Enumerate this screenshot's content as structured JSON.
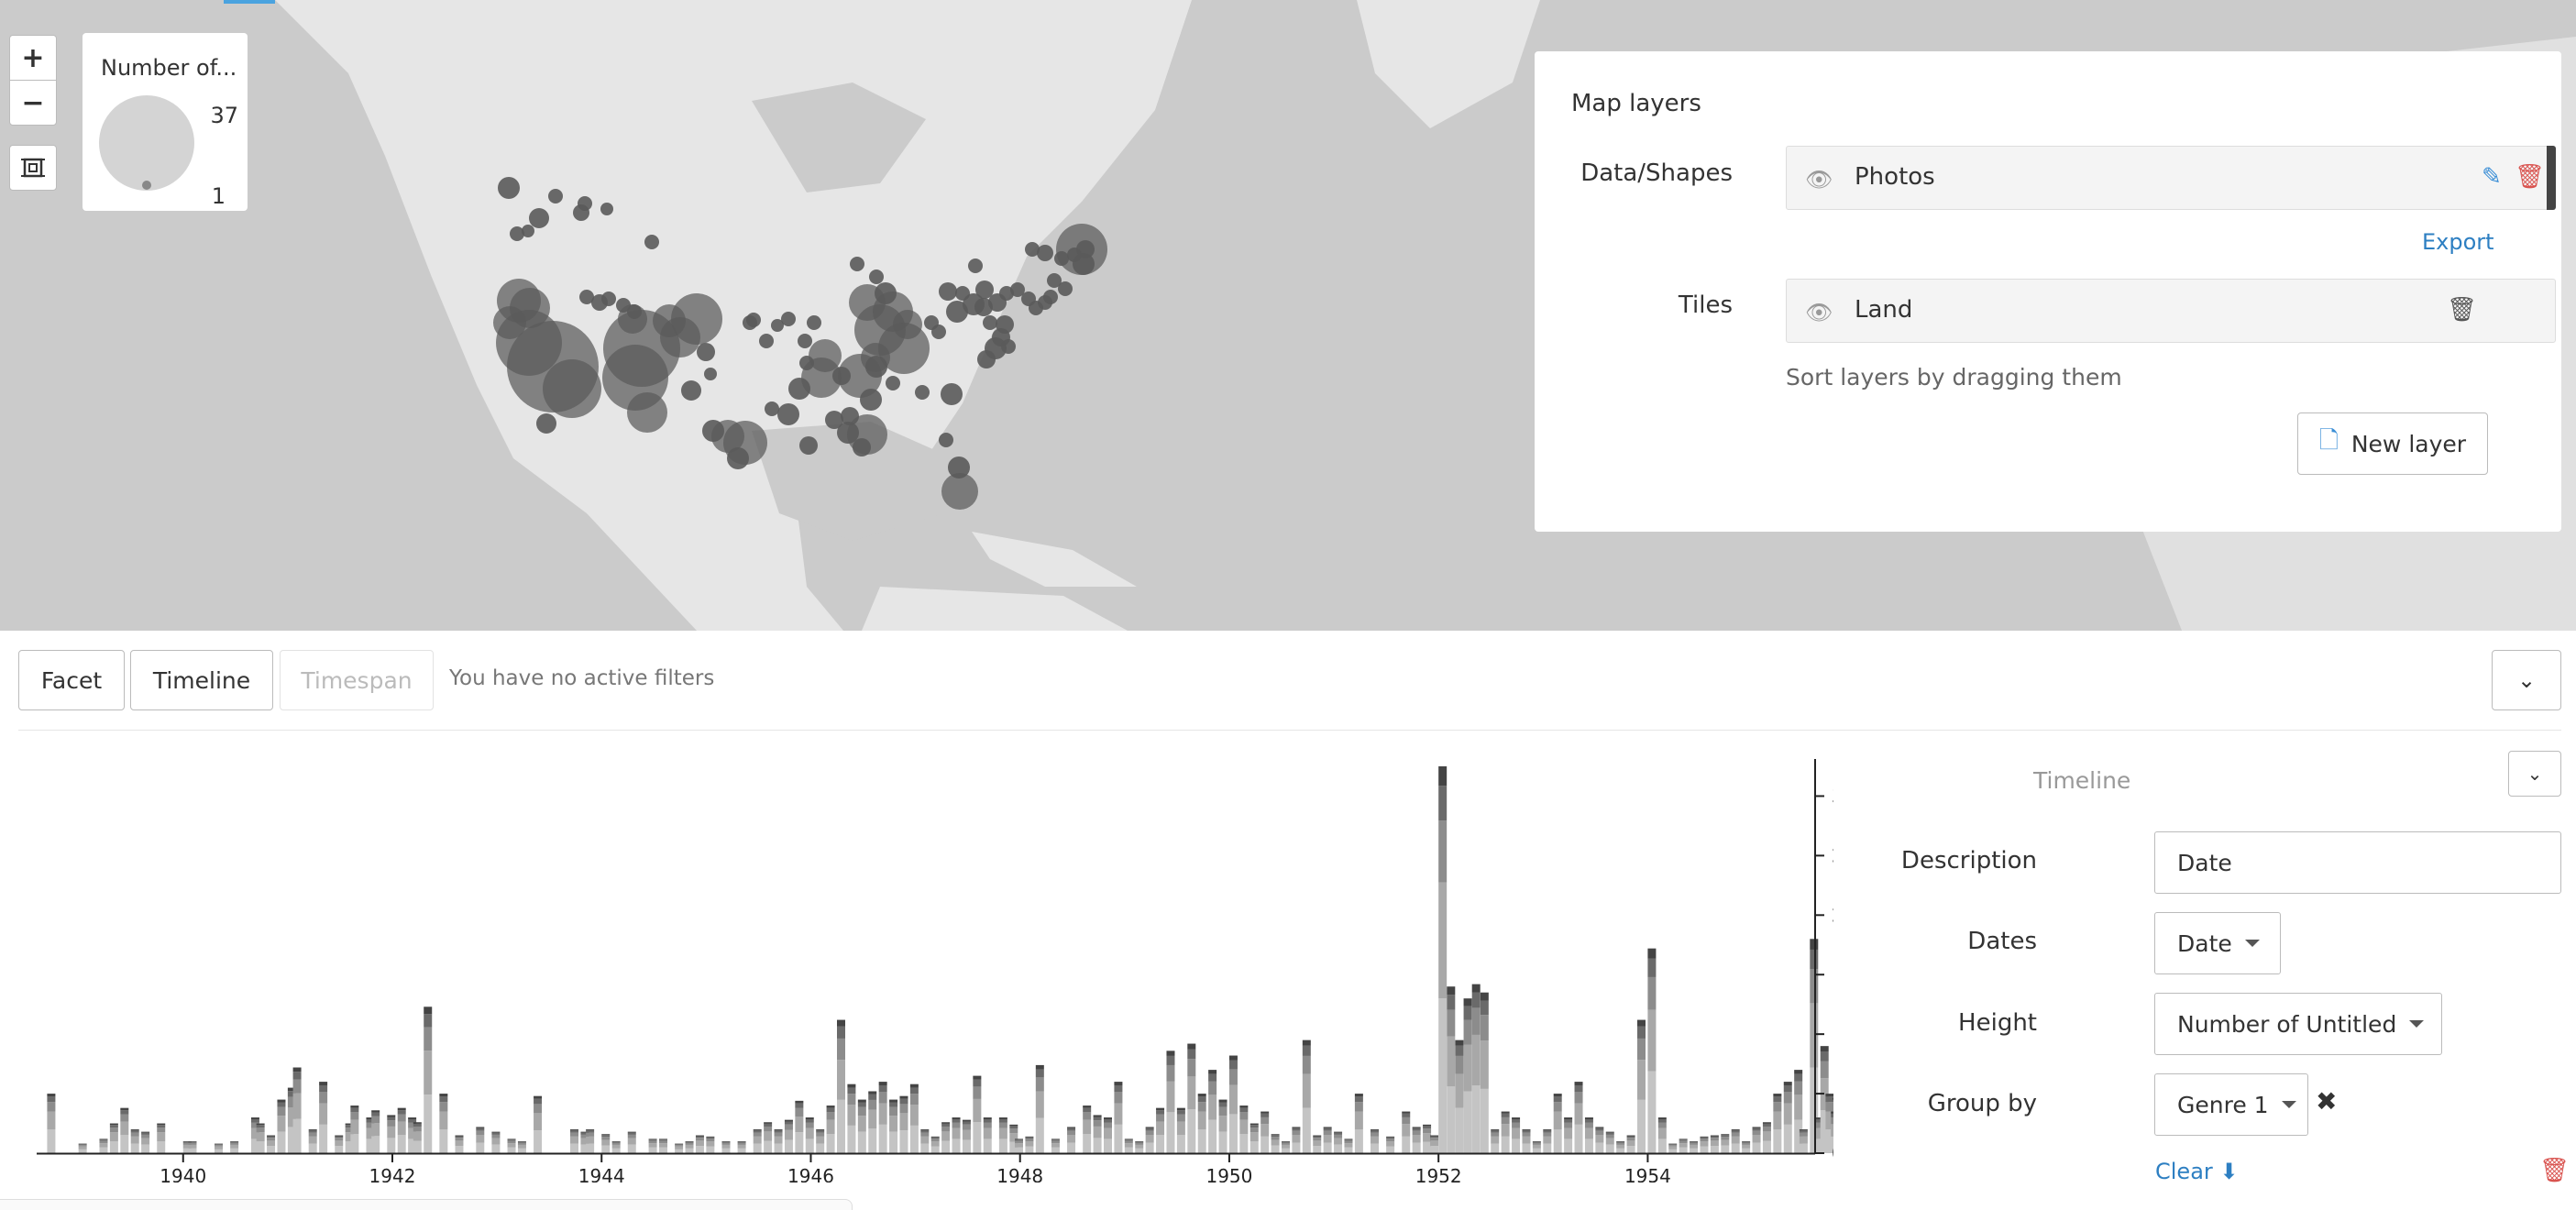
{
  "map": {
    "zoom_in": "+",
    "zoom_out": "−",
    "legend": {
      "title": "Number of...",
      "max": "37",
      "min": "1"
    },
    "colors": {
      "land": "#e6e6e6",
      "water": "#cbcbcb",
      "bubble": "#5a5a5a"
    }
  },
  "layers_panel": {
    "title": "Map layers",
    "data_shapes_label": "Data/Shapes",
    "tiles_label": "Tiles",
    "data_layer": {
      "name": "Photos",
      "icon": "eye-icon"
    },
    "tile_layer": {
      "name": "Land",
      "icon": "eye-icon"
    },
    "export": "Export",
    "sort_hint": "Sort layers by dragging them",
    "new_layer": "New layer"
  },
  "filters": {
    "facet": "Facet",
    "timeline": "Timeline",
    "timespan": "Timespan",
    "status": "You have no active filters"
  },
  "timeline_settings": {
    "title": "Timeline",
    "description_label": "Description",
    "description_value": "Date",
    "dates_label": "Dates",
    "dates_value": "Date",
    "height_label": "Height",
    "height_value": "Number of Untitled",
    "groupby_label": "Group by",
    "groupby_value": "Genre 1",
    "clear": "Clear"
  },
  "chart_data": {
    "type": "bar",
    "stacked": true,
    "x_ticks": [
      "1940",
      "1942",
      "1944",
      "1946",
      "1948",
      "1950",
      "1952",
      "1954"
    ],
    "y_ticks": [
      0,
      50,
      100,
      150,
      200,
      250,
      300
    ],
    "ylim": [
      0,
      325
    ],
    "x_range": [
      1938.6,
      1955.6
    ],
    "colors": [
      "#c4c4c4",
      "#a8a8a8",
      "#8c8c8c",
      "#6a6a6a",
      "#444444"
    ],
    "bars": [
      [
        1938.7,
        50
      ],
      [
        1939.0,
        8
      ],
      [
        1939.2,
        12
      ],
      [
        1939.3,
        25
      ],
      [
        1939.4,
        38
      ],
      [
        1939.5,
        20
      ],
      [
        1939.6,
        18
      ],
      [
        1939.75,
        25
      ],
      [
        1940.0,
        10
      ],
      [
        1940.05,
        10
      ],
      [
        1940.3,
        8
      ],
      [
        1940.45,
        10
      ],
      [
        1940.65,
        30
      ],
      [
        1940.7,
        25
      ],
      [
        1940.8,
        15
      ],
      [
        1940.9,
        45
      ],
      [
        1941.0,
        55
      ],
      [
        1941.05,
        72
      ],
      [
        1941.2,
        20
      ],
      [
        1941.3,
        60
      ],
      [
        1941.45,
        15
      ],
      [
        1941.55,
        25
      ],
      [
        1941.6,
        40
      ],
      [
        1941.75,
        30
      ],
      [
        1941.8,
        36
      ],
      [
        1941.95,
        32
      ],
      [
        1942.05,
        38
      ],
      [
        1942.15,
        30
      ],
      [
        1942.2,
        26
      ],
      [
        1942.3,
        123
      ],
      [
        1942.45,
        50
      ],
      [
        1942.6,
        15
      ],
      [
        1942.8,
        22
      ],
      [
        1942.95,
        18
      ],
      [
        1943.1,
        12
      ],
      [
        1943.2,
        10
      ],
      [
        1943.35,
        48
      ],
      [
        1943.7,
        20
      ],
      [
        1943.8,
        18
      ],
      [
        1943.85,
        20
      ],
      [
        1944.0,
        16
      ],
      [
        1944.1,
        10
      ],
      [
        1944.25,
        18
      ],
      [
        1944.45,
        12
      ],
      [
        1944.55,
        12
      ],
      [
        1944.7,
        8
      ],
      [
        1944.8,
        10
      ],
      [
        1944.9,
        15
      ],
      [
        1945.0,
        14
      ],
      [
        1945.15,
        10
      ],
      [
        1945.3,
        10
      ],
      [
        1945.45,
        20
      ],
      [
        1945.55,
        26
      ],
      [
        1945.65,
        20
      ],
      [
        1945.75,
        28
      ],
      [
        1945.85,
        44
      ],
      [
        1945.95,
        30
      ],
      [
        1946.05,
        20
      ],
      [
        1946.15,
        40
      ],
      [
        1946.25,
        112
      ],
      [
        1946.35,
        58
      ],
      [
        1946.45,
        45
      ],
      [
        1946.55,
        52
      ],
      [
        1946.65,
        60
      ],
      [
        1946.75,
        45
      ],
      [
        1946.85,
        48
      ],
      [
        1946.95,
        58
      ],
      [
        1947.05,
        20
      ],
      [
        1947.15,
        14
      ],
      [
        1947.25,
        26
      ],
      [
        1947.35,
        30
      ],
      [
        1947.45,
        28
      ],
      [
        1947.55,
        65
      ],
      [
        1947.65,
        30
      ],
      [
        1947.8,
        30
      ],
      [
        1947.9,
        24
      ],
      [
        1947.95,
        12
      ],
      [
        1948.05,
        14
      ],
      [
        1948.15,
        74
      ],
      [
        1948.3,
        12
      ],
      [
        1948.45,
        22
      ],
      [
        1948.6,
        40
      ],
      [
        1948.7,
        32
      ],
      [
        1948.8,
        30
      ],
      [
        1948.9,
        60
      ],
      [
        1949.0,
        12
      ],
      [
        1949.1,
        10
      ],
      [
        1949.2,
        22
      ],
      [
        1949.3,
        38
      ],
      [
        1949.4,
        86
      ],
      [
        1949.5,
        38
      ],
      [
        1949.6,
        92
      ],
      [
        1949.7,
        50
      ],
      [
        1949.8,
        70
      ],
      [
        1949.9,
        45
      ],
      [
        1950.0,
        82
      ],
      [
        1950.1,
        40
      ],
      [
        1950.2,
        25
      ],
      [
        1950.3,
        35
      ],
      [
        1950.4,
        16
      ],
      [
        1950.5,
        10
      ],
      [
        1950.6,
        22
      ],
      [
        1950.7,
        95
      ],
      [
        1950.8,
        15
      ],
      [
        1950.9,
        22
      ],
      [
        1951.0,
        18
      ],
      [
        1951.1,
        12
      ],
      [
        1951.2,
        50
      ],
      [
        1951.35,
        20
      ],
      [
        1951.5,
        14
      ],
      [
        1951.65,
        35
      ],
      [
        1951.75,
        22
      ],
      [
        1951.85,
        24
      ],
      [
        1951.92,
        15
      ],
      [
        1952.0,
        325
      ],
      [
        1952.08,
        140
      ],
      [
        1952.16,
        95
      ],
      [
        1952.24,
        130
      ],
      [
        1952.32,
        142
      ],
      [
        1952.4,
        135
      ],
      [
        1952.5,
        20
      ],
      [
        1952.6,
        35
      ],
      [
        1952.7,
        30
      ],
      [
        1952.8,
        20
      ],
      [
        1952.9,
        10
      ],
      [
        1953.0,
        20
      ],
      [
        1953.1,
        50
      ],
      [
        1953.2,
        30
      ],
      [
        1953.3,
        60
      ],
      [
        1953.4,
        30
      ],
      [
        1953.5,
        22
      ],
      [
        1953.6,
        18
      ],
      [
        1953.7,
        10
      ],
      [
        1953.8,
        15
      ],
      [
        1953.9,
        112
      ],
      [
        1954.0,
        172
      ],
      [
        1954.1,
        30
      ],
      [
        1954.2,
        8
      ],
      [
        1954.3,
        12
      ],
      [
        1954.4,
        10
      ],
      [
        1954.5,
        14
      ],
      [
        1954.6,
        15
      ],
      [
        1954.7,
        16
      ],
      [
        1954.8,
        20
      ],
      [
        1954.9,
        10
      ],
      [
        1955.0,
        22
      ],
      [
        1955.1,
        26
      ],
      [
        1955.2,
        50
      ],
      [
        1955.3,
        60
      ],
      [
        1955.4,
        70
      ],
      [
        1955.45,
        20
      ],
      [
        1955.55,
        180
      ],
      [
        1955.6,
        30
      ],
      [
        1955.65,
        90
      ],
      [
        1955.7,
        50
      ],
      [
        1955.75,
        35
      ]
    ]
  },
  "map_bubbles": [
    [
      555,
      205,
      12
    ],
    [
      606,
      214,
      8
    ],
    [
      588,
      238,
      11
    ],
    [
      634,
      232,
      9
    ],
    [
      662,
      228,
      7
    ],
    [
      638,
      222,
      8
    ],
    [
      711,
      264,
      8
    ],
    [
      564,
      255,
      8
    ],
    [
      576,
      252,
      7
    ],
    [
      640,
      324,
      8
    ],
    [
      654,
      330,
      9
    ],
    [
      664,
      326,
      8
    ],
    [
      680,
      333,
      8
    ],
    [
      692,
      340,
      8
    ],
    [
      566,
      328,
      24
    ],
    [
      578,
      336,
      22
    ],
    [
      556,
      352,
      18
    ],
    [
      577,
      374,
      36
    ],
    [
      603,
      400,
      50
    ],
    [
      624,
      424,
      32
    ],
    [
      596,
      462,
      11
    ],
    [
      690,
      348,
      16
    ],
    [
      730,
      350,
      18
    ],
    [
      742,
      368,
      22
    ],
    [
      760,
      348,
      28
    ],
    [
      770,
      384,
      10
    ],
    [
      775,
      408,
      7
    ],
    [
      818,
      352,
      8
    ],
    [
      700,
      380,
      42
    ],
    [
      693,
      412,
      36
    ],
    [
      706,
      450,
      22
    ],
    [
      754,
      426,
      11
    ],
    [
      778,
      470,
      12
    ],
    [
      794,
      476,
      18
    ],
    [
      813,
      483,
      24
    ],
    [
      805,
      500,
      12
    ],
    [
      822,
      349,
      8
    ],
    [
      848,
      355,
      7
    ],
    [
      860,
      348,
      8
    ],
    [
      888,
      352,
      8
    ],
    [
      836,
      372,
      8
    ],
    [
      878,
      372,
      8
    ],
    [
      880,
      396,
      8
    ],
    [
      872,
      424,
      12
    ],
    [
      900,
      388,
      18
    ],
    [
      896,
      412,
      22
    ],
    [
      918,
      410,
      10
    ],
    [
      938,
      410,
      24
    ],
    [
      955,
      390,
      16
    ],
    [
      960,
      360,
      28
    ],
    [
      974,
      340,
      22
    ],
    [
      966,
      320,
      12
    ],
    [
      956,
      302,
      8
    ],
    [
      935,
      288,
      8
    ],
    [
      946,
      330,
      20
    ],
    [
      990,
      354,
      16
    ],
    [
      986,
      380,
      28
    ],
    [
      956,
      400,
      12
    ],
    [
      950,
      436,
      12
    ],
    [
      927,
      454,
      10
    ],
    [
      925,
      472,
      12
    ],
    [
      946,
      474,
      22
    ],
    [
      940,
      488,
      10
    ],
    [
      910,
      458,
      10
    ],
    [
      882,
      486,
      10
    ],
    [
      860,
      452,
      12
    ],
    [
      842,
      446,
      8
    ],
    [
      974,
      418,
      8
    ],
    [
      1006,
      428,
      8
    ],
    [
      1038,
      430,
      12
    ],
    [
      1016,
      352,
      8
    ],
    [
      1024,
      362,
      8
    ],
    [
      1034,
      318,
      10
    ],
    [
      1050,
      320,
      8
    ],
    [
      1064,
      290,
      8
    ],
    [
      1074,
      316,
      10
    ],
    [
      1044,
      340,
      12
    ],
    [
      1062,
      332,
      12
    ],
    [
      1073,
      335,
      10
    ],
    [
      1088,
      330,
      10
    ],
    [
      1098,
      320,
      8
    ],
    [
      1110,
      316,
      8
    ],
    [
      1122,
      326,
      8
    ],
    [
      1096,
      354,
      10
    ],
    [
      1080,
      352,
      8
    ],
    [
      1092,
      368,
      10
    ],
    [
      1086,
      380,
      12
    ],
    [
      1076,
      392,
      10
    ],
    [
      1100,
      378,
      8
    ],
    [
      1130,
      336,
      8
    ],
    [
      1140,
      330,
      8
    ],
    [
      1126,
      272,
      8
    ],
    [
      1140,
      276,
      9
    ],
    [
      1158,
      282,
      8
    ],
    [
      1172,
      278,
      8
    ],
    [
      1184,
      272,
      10
    ],
    [
      1182,
      288,
      12
    ],
    [
      1180,
      272,
      28
    ],
    [
      1150,
      306,
      8
    ],
    [
      1162,
      315,
      8
    ],
    [
      1146,
      324,
      8
    ],
    [
      1032,
      480,
      8
    ],
    [
      1046,
      510,
      12
    ],
    [
      1047,
      536,
      20
    ]
  ]
}
